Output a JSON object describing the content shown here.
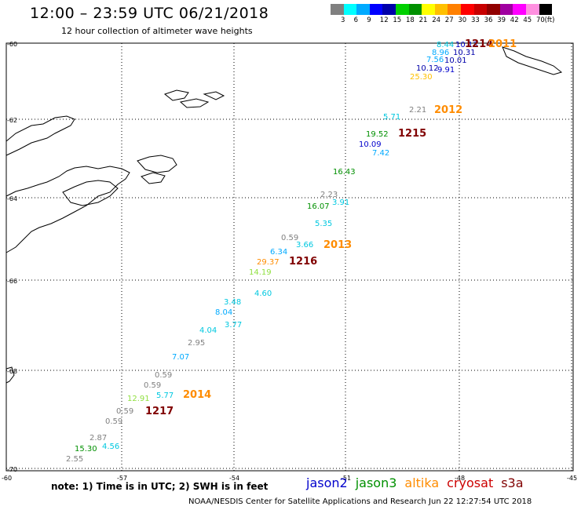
{
  "title": "12:00 – 23:59 UTC 06/21/2018",
  "subtitle": "12 hour collection of altimeter wave heights",
  "legend": {
    "unit": "(ft)",
    "colors": [
      "#808080",
      "#00ffff",
      "#00aaff",
      "#0000ff",
      "#0000aa",
      "#00d000",
      "#009000",
      "#ffff00",
      "#ffc000",
      "#ff8000",
      "#ff0000",
      "#c80000",
      "#900000",
      "#a000a0",
      "#ff00ff",
      "#ff90e0",
      "#000000"
    ],
    "labels": [
      "3",
      "6",
      "9",
      "12",
      "15",
      "18",
      "21",
      "24",
      "27",
      "30",
      "33",
      "36",
      "39",
      "42",
      "45",
      "70"
    ]
  },
  "axis_labels": {
    "lat": [
      "-60",
      "-62",
      "-64",
      "-66",
      "-68",
      "-70"
    ],
    "lon": [
      "-60",
      "-57",
      "-54",
      "-51",
      "-48",
      "-45"
    ]
  },
  "satellites": [
    {
      "name": "jason2",
      "color": "#0000cc"
    },
    {
      "name": "jason3",
      "color": "#009000"
    },
    {
      "name": "altika",
      "color": "#ff8c00"
    },
    {
      "name": "cryosat",
      "color": "#cc0000"
    },
    {
      "name": "s3a",
      "color": "#800000"
    }
  ],
  "footer_note": "note: 1) Time is in UTC; 2) SWH is in feet",
  "footer_credit": "NOAA/NESDIS Center for Satellite Applications and Research    Jun 22 12:27:54 UTC 2018",
  "wave_labels": [
    {
      "text": "8.44",
      "color": "#00c8e0"
    },
    {
      "text": "10.13",
      "color": "#0000cc"
    },
    {
      "text": "1214",
      "color": "#800000"
    },
    {
      "text": "2011",
      "color": "#ff8c00"
    },
    {
      "text": "8.96",
      "color": "#00aaff"
    },
    {
      "text": "10.31",
      "color": "#0000aa"
    },
    {
      "text": "7.56",
      "color": "#00aaff"
    },
    {
      "text": "10.01",
      "color": "#0000aa"
    },
    {
      "text": "10.12",
      "color": "#0000aa"
    },
    {
      "text": "9.91",
      "color": "#0000cc"
    },
    {
      "text": "25.30",
      "color": "#ffc000"
    },
    {
      "text": "2.21",
      "color": "#808080"
    },
    {
      "text": "2012",
      "color": "#ff8c00"
    },
    {
      "text": "5.71",
      "color": "#00c8e0"
    },
    {
      "text": "19.52",
      "color": "#009000"
    },
    {
      "text": "1215",
      "color": "#800000"
    },
    {
      "text": "10.09",
      "color": "#0000cc"
    },
    {
      "text": "7.42",
      "color": "#00aaff"
    },
    {
      "text": "16.43",
      "color": "#009000"
    },
    {
      "text": "2.23",
      "color": "#808080"
    },
    {
      "text": "16.07",
      "color": "#009000"
    },
    {
      "text": "3.91",
      "color": "#00c8e0"
    },
    {
      "text": "5.35",
      "color": "#00c8e0"
    },
    {
      "text": "0.59",
      "color": "#808080"
    },
    {
      "text": "3.66",
      "color": "#00c8e0"
    },
    {
      "text": "2013",
      "color": "#ff8c00"
    },
    {
      "text": "6.34",
      "color": "#00aaff"
    },
    {
      "text": "29.37",
      "color": "#ff8c00"
    },
    {
      "text": "1216",
      "color": "#800000"
    },
    {
      "text": "14.19",
      "color": "#90e040"
    },
    {
      "text": "4.60",
      "color": "#00c8e0"
    },
    {
      "text": "3.48",
      "color": "#00c8e0"
    },
    {
      "text": "8.04",
      "color": "#00aaff"
    },
    {
      "text": "3.77",
      "color": "#00c8e0"
    },
    {
      "text": "4.04",
      "color": "#00c8e0"
    },
    {
      "text": "2.95",
      "color": "#808080"
    },
    {
      "text": "7.07",
      "color": "#00aaff"
    },
    {
      "text": "0.59",
      "color": "#808080"
    },
    {
      "text": "0.59",
      "color": "#808080"
    },
    {
      "text": "12.91",
      "color": "#90e040"
    },
    {
      "text": "5.77",
      "color": "#00c8e0"
    },
    {
      "text": "2014",
      "color": "#ff8c00"
    },
    {
      "text": "0.59",
      "color": "#808080"
    },
    {
      "text": "1217",
      "color": "#800000"
    },
    {
      "text": "0.59",
      "color": "#808080"
    },
    {
      "text": "2.87",
      "color": "#808080"
    },
    {
      "text": "15.30",
      "color": "#009000"
    },
    {
      "text": "4.56",
      "color": "#00c8e0"
    },
    {
      "text": "2.55",
      "color": "#808080"
    }
  ]
}
